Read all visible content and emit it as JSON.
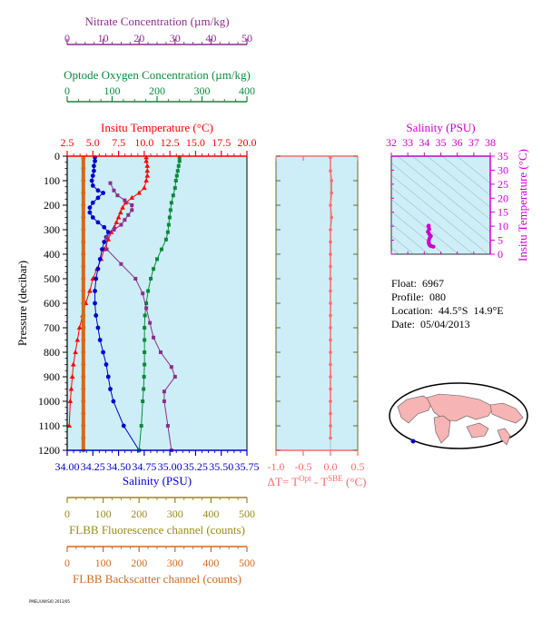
{
  "colors": {
    "nitrate": "#8b2f8b",
    "oxygen": "#0a8a3a",
    "temperature": "#ff0000",
    "salinity": "#0000cc",
    "delta": "#ff6a6a",
    "fluorescence": "#9a8a1a",
    "backscatter": "#d2691e",
    "ts_salinity": "#cc00cc",
    "plot_bg": "#cdeef7",
    "land": "#f7b4b4"
  },
  "info": {
    "float": "Float:  6967",
    "profile": "Profile:  080",
    "location": "Location:  44.5°S  14.9°E",
    "date": "Date:  05/04/2013"
  },
  "footer": "PMEL/UW/SIO 2013/05",
  "chart_data": [
    {
      "type": "line",
      "panel": "main-profile",
      "ylabel": "Pressure (decibar)",
      "ylim": [
        1200,
        0
      ],
      "yticks": [
        0,
        100,
        200,
        300,
        400,
        500,
        600,
        700,
        800,
        900,
        1000,
        1100,
        1200
      ],
      "axes": {
        "nitrate": {
          "label": "Nitrate Concentration (µm/kg)",
          "ticks": [
            "0",
            "10",
            "20",
            "30",
            "40",
            "50"
          ],
          "lim": [
            0,
            50
          ]
        },
        "oxygen": {
          "label": "Optode Oxygen Concentration (µm/kg)",
          "ticks": [
            "0",
            "100",
            "200",
            "300",
            "400"
          ],
          "lim": [
            0,
            400
          ]
        },
        "temperature": {
          "label": "Insitu Temperature (°C)",
          "ticks": [
            "2.5",
            "5.0",
            "7.5",
            "10.0",
            "12.5",
            "15.0",
            "17.5",
            "20.0"
          ],
          "lim": [
            2.5,
            20
          ]
        },
        "salinity": {
          "label": "Salinity (PSU)",
          "ticks": [
            "34.00",
            "34.25",
            "34.50",
            "34.75",
            "35.00",
            "35.25",
            "35.50",
            "35.75"
          ],
          "lim": [
            34.0,
            35.75
          ]
        },
        "fluorescence": {
          "label": "FLBB Fluorescence channel (counts)",
          "ticks": [
            "0",
            "100",
            "200",
            "300",
            "400",
            "500"
          ],
          "lim": [
            0,
            500
          ]
        },
        "backscatter": {
          "label": "FLBB Backscatter channel (counts)",
          "ticks": [
            "0",
            "100",
            "200",
            "300",
            "400",
            "500"
          ],
          "lim": [
            0,
            500
          ]
        }
      },
      "series": [
        {
          "key": "temperature",
          "points": [
            [
              10.2,
              5
            ],
            [
              10.2,
              20
            ],
            [
              10.3,
              40
            ],
            [
              10.3,
              60
            ],
            [
              10.3,
              80
            ],
            [
              10.2,
              100
            ],
            [
              10.0,
              130
            ],
            [
              9.5,
              150
            ],
            [
              8.8,
              170
            ],
            [
              8.2,
              190
            ],
            [
              7.9,
              210
            ],
            [
              7.7,
              230
            ],
            [
              7.5,
              250
            ],
            [
              7.3,
              270
            ],
            [
              7.1,
              290
            ],
            [
              6.8,
              310
            ],
            [
              6.5,
              340
            ],
            [
              6.1,
              380
            ],
            [
              5.8,
              420
            ],
            [
              5.4,
              460
            ],
            [
              5.0,
              500
            ],
            [
              4.7,
              550
            ],
            [
              4.3,
              600
            ],
            [
              4.0,
              650
            ],
            [
              3.7,
              700
            ],
            [
              3.5,
              750
            ],
            [
              3.3,
              800
            ],
            [
              3.1,
              850
            ],
            [
              3.0,
              900
            ],
            [
              2.9,
              950
            ],
            [
              2.8,
              1000
            ],
            [
              2.7,
              1100
            ]
          ]
        },
        {
          "key": "salinity",
          "points": [
            [
              34.27,
              5
            ],
            [
              34.27,
              20
            ],
            [
              34.26,
              40
            ],
            [
              34.26,
              60
            ],
            [
              34.25,
              80
            ],
            [
              34.24,
              100
            ],
            [
              34.25,
              120
            ],
            [
              34.3,
              140
            ],
            [
              34.35,
              150
            ],
            [
              34.3,
              170
            ],
            [
              34.25,
              190
            ],
            [
              34.22,
              210
            ],
            [
              34.22,
              230
            ],
            [
              34.25,
              250
            ],
            [
              34.3,
              270
            ],
            [
              34.36,
              290
            ],
            [
              34.4,
              310
            ],
            [
              34.38,
              330
            ],
            [
              34.36,
              350
            ],
            [
              34.34,
              380
            ],
            [
              34.32,
              420
            ],
            [
              34.3,
              460
            ],
            [
              34.28,
              500
            ],
            [
              34.27,
              550
            ],
            [
              34.27,
              600
            ],
            [
              34.28,
              650
            ],
            [
              34.3,
              700
            ],
            [
              34.32,
              750
            ],
            [
              34.35,
              800
            ],
            [
              34.38,
              850
            ],
            [
              34.4,
              900
            ],
            [
              34.42,
              950
            ],
            [
              34.45,
              1000
            ],
            [
              34.55,
              1100
            ],
            [
              34.7,
              1200
            ]
          ]
        },
        {
          "key": "oxygen",
          "points": [
            [
              250,
              5
            ],
            [
              250,
              20
            ],
            [
              248,
              40
            ],
            [
              246,
              60
            ],
            [
              244,
              80
            ],
            [
              242,
              100
            ],
            [
              240,
              130
            ],
            [
              236,
              160
            ],
            [
              232,
              190
            ],
            [
              230,
              220
            ],
            [
              228,
              250
            ],
            [
              226,
              280
            ],
            [
              224,
              310
            ],
            [
              220,
              340
            ],
            [
              210,
              380
            ],
            [
              200,
              420
            ],
            [
              192,
              460
            ],
            [
              186,
              500
            ],
            [
              180,
              550
            ],
            [
              176,
              600
            ],
            [
              173,
              650
            ],
            [
              172,
              700
            ],
            [
              172,
              750
            ],
            [
              172,
              800
            ],
            [
              172,
              850
            ],
            [
              171,
              900
            ],
            [
              170,
              950
            ],
            [
              168,
              1000
            ],
            [
              165,
              1100
            ],
            [
              160,
              1200
            ]
          ]
        },
        {
          "key": "nitrate",
          "points": [
            [
              12,
              110
            ],
            [
              13,
              140
            ],
            [
              14,
              160
            ],
            [
              16,
              180
            ],
            [
              18,
              200
            ],
            [
              18,
              220
            ],
            [
              17,
              240
            ],
            [
              16,
              260
            ],
            [
              15,
              280
            ],
            [
              13,
              300
            ],
            [
              11,
              330
            ],
            [
              11,
              380
            ],
            [
              15,
              440
            ],
            [
              19,
              500
            ],
            [
              21,
              560
            ],
            [
              22,
              620
            ],
            [
              23,
              680
            ],
            [
              24,
              740
            ],
            [
              26,
              800
            ],
            [
              29,
              860
            ],
            [
              30,
              900
            ],
            [
              27,
              960
            ],
            [
              27,
              1000
            ],
            [
              28,
              1100
            ],
            [
              29,
              1200
            ]
          ]
        },
        {
          "key": "backscatter",
          "points": [
            [
              45,
              10
            ],
            [
              45,
              50
            ],
            [
              45,
              100
            ],
            [
              45,
              150
            ],
            [
              45,
              200
            ],
            [
              45,
              250
            ],
            [
              45,
              300
            ],
            [
              45,
              350
            ],
            [
              45,
              400
            ],
            [
              45,
              450
            ],
            [
              45,
              500
            ],
            [
              45,
              550
            ],
            [
              45,
              600
            ],
            [
              45,
              650
            ],
            [
              45,
              700
            ],
            [
              45,
              750
            ],
            [
              45,
              800
            ],
            [
              45,
              850
            ],
            [
              45,
              900
            ],
            [
              45,
              950
            ],
            [
              45,
              1000
            ],
            [
              45,
              1050
            ],
            [
              45,
              1100
            ],
            [
              45,
              1150
            ],
            [
              45,
              1200
            ]
          ]
        }
      ]
    },
    {
      "type": "line",
      "panel": "delta-t",
      "xlabel": "ΔT= T^Opt - T^SBE (°C)",
      "xticks": [
        "-1.0",
        "-0.5",
        "0.0",
        "0.5"
      ],
      "xlim": [
        -1.0,
        0.5
      ],
      "ylim": [
        1200,
        0
      ],
      "points": [
        [
          0.0,
          5
        ],
        [
          0.0,
          60
        ],
        [
          0.02,
          100
        ],
        [
          0.02,
          150
        ],
        [
          0.0,
          200
        ],
        [
          0.02,
          250
        ],
        [
          0.0,
          300
        ],
        [
          0.0,
          350
        ],
        [
          0.0,
          400
        ],
        [
          0.0,
          450
        ],
        [
          0.0,
          500
        ],
        [
          0.0,
          550
        ],
        [
          0.0,
          600
        ],
        [
          0.0,
          650
        ],
        [
          0.0,
          700
        ],
        [
          0.0,
          750
        ],
        [
          0.0,
          800
        ],
        [
          0.0,
          850
        ],
        [
          0.0,
          900
        ],
        [
          0.0,
          950
        ],
        [
          0.0,
          1000
        ],
        [
          0.0,
          1050
        ],
        [
          0.0,
          1100
        ],
        [
          0.0,
          1150
        ]
      ]
    },
    {
      "type": "scatter",
      "panel": "ts-diagram",
      "xlabel": "Salinity (PSU)",
      "ylabel": "Insitu Temperature (°C)",
      "xticks": [
        "32",
        "33",
        "34",
        "35",
        "36",
        "37",
        "38"
      ],
      "yticks": [
        "0",
        "5",
        "10",
        "15",
        "20",
        "25",
        "30",
        "35"
      ],
      "xlim": [
        32,
        38
      ],
      "ylim": [
        0,
        35
      ],
      "points": [
        [
          34.27,
          10.2
        ],
        [
          34.25,
          10.0
        ],
        [
          34.3,
          9.0
        ],
        [
          34.22,
          8.0
        ],
        [
          34.3,
          7.2
        ],
        [
          34.4,
          6.5
        ],
        [
          34.33,
          5.8
        ],
        [
          34.28,
          5.0
        ],
        [
          34.27,
          4.2
        ],
        [
          34.3,
          3.5
        ],
        [
          34.35,
          3.1
        ],
        [
          34.42,
          2.9
        ],
        [
          34.55,
          2.7
        ]
      ]
    }
  ]
}
